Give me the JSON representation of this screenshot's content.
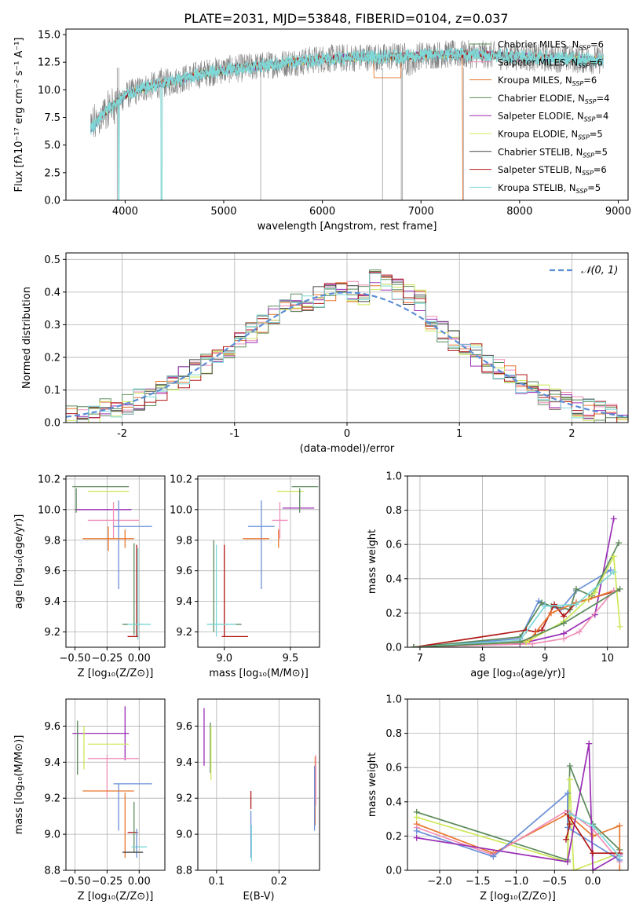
{
  "figure_title": "PLATE=2031, MJD=53848, FIBERID=0104, z=0.037",
  "colors": {
    "Chabrier MILES": "#5a8e5a",
    "Salpeter MILES": "#ef8fb8",
    "Kroupa MILES": "#e8772e",
    "Chabrier ELODIE": "#5b8a5b",
    "Salpeter ELODIE": "#9a2fb5",
    "Kroupa ELODIE": "#cde85a",
    "Chabrier STELIB": "#444444",
    "Salpeter STELIB": "#b01818",
    "Kroupa STELIB": "#7fd8d8",
    "gaussian": "#5b8ed6",
    "data": "#808080",
    "extra_blue": "#6a8fd8"
  },
  "chart_data": [
    {
      "id": "spectrum",
      "type": "line",
      "title": "PLATE=2031, MJD=53848, FIBERID=0104, z=0.037",
      "xlabel": "wavelength [Angstrom, rest frame]",
      "ylabel": "Flux [fλ10⁻¹⁷ erg cm⁻² s⁻¹ A⁻¹]",
      "xlim": [
        3400,
        9100
      ],
      "ylim": [
        0,
        15.5
      ],
      "xticks": [
        4000,
        5000,
        6000,
        7000,
        8000,
        9000
      ],
      "yticks": [
        0.0,
        2.5,
        5.0,
        7.5,
        10.0,
        12.5,
        15.0
      ],
      "grid": false,
      "legend_position": "upper-right",
      "legend": [
        {
          "label": "Chabrier MILES, N",
          "sub": "SSP",
          "tail": "=6"
        },
        {
          "label": "Salpeter MILES, N",
          "sub": "SSP",
          "tail": "=6"
        },
        {
          "label": "Kroupa MILES, N",
          "sub": "SSP",
          "tail": "=6"
        },
        {
          "label": "Chabrier ELODIE, N",
          "sub": "SSP",
          "tail": "=4"
        },
        {
          "label": "Salpeter ELODIE, N",
          "sub": "SSP",
          "tail": "=4"
        },
        {
          "label": "Kroupa ELODIE, N",
          "sub": "SSP",
          "tail": "=5"
        },
        {
          "label": "Chabrier STELIB, N",
          "sub": "SSP",
          "tail": "=5"
        },
        {
          "label": "Salpeter STELIB, N",
          "sub": "SSP",
          "tail": "=6"
        },
        {
          "label": "Kroupa STELIB, N",
          "sub": "SSP",
          "tail": "=5"
        }
      ],
      "continuum_x": [
        3650,
        3800,
        4000,
        4200,
        4500,
        4800,
        5000,
        5200,
        5500,
        5800,
        6000,
        6300,
        6500,
        6600,
        6700,
        6800,
        7000,
        7200,
        7400,
        7600,
        7800,
        8000,
        8200,
        8500,
        8800
      ],
      "continuum_y": [
        6.5,
        8.0,
        9.5,
        10.2,
        10.8,
        11.5,
        11.8,
        12.0,
        12.3,
        12.6,
        12.8,
        12.9,
        13.0,
        12.9,
        13.0,
        13.0,
        13.1,
        13.2,
        13.2,
        13.2,
        13.1,
        13.0,
        12.9,
        12.8,
        12.7
      ],
      "dropouts": [
        3920,
        3935,
        4365,
        5375,
        6610,
        6800,
        6810,
        7430
      ]
    },
    {
      "id": "residuals",
      "type": "line",
      "xlabel": "(data-model)/error",
      "ylabel": "Normed distribution",
      "xlim": [
        -2.5,
        2.5
      ],
      "ylim": [
        0,
        0.52
      ],
      "xticks": [
        -2,
        -1,
        0,
        1,
        2
      ],
      "yticks": [
        0.0,
        0.1,
        0.2,
        0.3,
        0.4,
        0.5
      ],
      "grid": true,
      "legend_position": "upper-right",
      "gaussian_label": "𝒩(0, 1)",
      "bin_width": 0.1
    },
    {
      "id": "age_vs_Z",
      "type": "scatter",
      "xlabel": "Z [log₁₀(Z/Z⊙)]",
      "ylabel": "age  [log₁₀(age/yr)]",
      "xlim": [
        -0.57,
        0.2
      ],
      "ylim": [
        9.1,
        10.22
      ],
      "xticks": [
        -0.5,
        -0.25,
        0.0
      ],
      "xticklabels": [
        "−0.50",
        "−0.25",
        "0.00"
      ],
      "yticks": [
        9.2,
        9.4,
        9.6,
        9.8,
        10.0,
        10.2
      ],
      "grid": true,
      "points": [
        {
          "c": "#5b8a5b",
          "x": -0.3,
          "xerr": 0.22,
          "y": 10.15,
          "yerr": 0.0
        },
        {
          "c": "#cde85a",
          "x": -0.24,
          "xerr": 0.16,
          "y": 10.12,
          "yerr": 0.0
        },
        {
          "c": "#9a2fb5",
          "x": -0.28,
          "xerr": 0.22,
          "y": 10.0,
          "yerr": 0.0
        },
        {
          "c": "#5b8a5b",
          "x": -0.49,
          "xerr": 0.0,
          "y": 10.06,
          "yerr": 0.08
        },
        {
          "c": "#ef8fb8",
          "x": -0.2,
          "xerr": 0.2,
          "y": 9.93,
          "yerr": 0.12
        },
        {
          "c": "#6a8fd8",
          "x": -0.05,
          "xerr": 0.15,
          "y": 9.89,
          "yerr": 0.0
        },
        {
          "c": "#6a8fd8",
          "x": -0.16,
          "xerr": 0.0,
          "y": 9.77,
          "yerr": 0.29
        },
        {
          "c": "#e8772e",
          "x": -0.24,
          "xerr": 0.2,
          "y": 9.81,
          "yerr": 0.08
        },
        {
          "c": "#e8772e",
          "x": -0.11,
          "xerr": 0.0,
          "y": 9.81,
          "yerr": 0.06
        },
        {
          "c": "#5b8a5b",
          "x": -0.04,
          "xerr": 0.0,
          "y": 9.48,
          "yerr": 0.3
        },
        {
          "c": "#b01818",
          "x": -0.02,
          "xerr": 0.0,
          "y": 9.47,
          "yerr": 0.3
        },
        {
          "c": "#7fd8d8",
          "x": -0.01,
          "xerr": 0.0,
          "y": 9.45,
          "yerr": 0.3
        },
        {
          "c": "#5b8a5b",
          "x": -0.05,
          "xerr": 0.08,
          "y": 9.25,
          "yerr": 0.0
        },
        {
          "c": "#7fd8d8",
          "x": 0.0,
          "xerr": 0.09,
          "y": 9.25,
          "yerr": 0.0
        },
        {
          "c": "#b01818",
          "x": -0.05,
          "xerr": 0.04,
          "y": 9.17,
          "yerr": 0.0
        }
      ]
    },
    {
      "id": "age_vs_mass",
      "type": "scatter",
      "xlabel": "mass [log₁₀(M/M⊙)]",
      "ylabel": "",
      "xlim": [
        8.8,
        9.72
      ],
      "ylim": [
        9.1,
        10.22
      ],
      "xticks": [
        9.0,
        9.5
      ],
      "xticklabels": [
        "9.0",
        "9.5"
      ],
      "yticks": [
        9.2,
        9.4,
        9.6,
        9.8,
        10.0,
        10.2
      ],
      "grid": true,
      "points": [
        {
          "c": "#5b8a5b",
          "x": 9.61,
          "xerr": 0.1,
          "y": 10.15,
          "yerr": 0.0
        },
        {
          "c": "#cde85a",
          "x": 9.5,
          "xerr": 0.1,
          "y": 10.12,
          "yerr": 0.0
        },
        {
          "c": "#9a2fb5",
          "x": 9.56,
          "xerr": 0.12,
          "y": 10.01,
          "yerr": 0.0
        },
        {
          "c": "#5b8a5b",
          "x": 9.57,
          "xerr": 0.0,
          "y": 10.06,
          "yerr": 0.08
        },
        {
          "c": "#ef8fb8",
          "x": 9.42,
          "xerr": 0.06,
          "y": 9.93,
          "yerr": 0.12
        },
        {
          "c": "#6a8fd8",
          "x": 9.28,
          "xerr": 0.1,
          "y": 9.89,
          "yerr": 0.0
        },
        {
          "c": "#6a8fd8",
          "x": 9.28,
          "xerr": 0.0,
          "y": 9.77,
          "yerr": 0.29
        },
        {
          "c": "#e8772e",
          "x": 9.24,
          "xerr": 0.1,
          "y": 9.81,
          "yerr": 0.0
        },
        {
          "c": "#e8772e",
          "x": 9.41,
          "xerr": 0.0,
          "y": 9.81,
          "yerr": 0.06
        },
        {
          "c": "#5b8a5b",
          "x": 8.92,
          "xerr": 0.0,
          "y": 9.5,
          "yerr": 0.3
        },
        {
          "c": "#7fd8d8",
          "x": 8.94,
          "xerr": 0.0,
          "y": 9.47,
          "yerr": 0.3
        },
        {
          "c": "#b01818",
          "x": 9.0,
          "xerr": 0.0,
          "y": 9.47,
          "yerr": 0.3
        },
        {
          "c": "#5b8a5b",
          "x": 9.0,
          "xerr": 0.13,
          "y": 9.25,
          "yerr": 0.0
        },
        {
          "c": "#7fd8d8",
          "x": 8.98,
          "xerr": 0.11,
          "y": 9.25,
          "yerr": 0.0
        },
        {
          "c": "#b01818",
          "x": 9.08,
          "xerr": 0.1,
          "y": 9.17,
          "yerr": 0.0
        }
      ]
    },
    {
      "id": "mass_weight_vs_age",
      "type": "line",
      "xlabel": "age  [log₁₀(age/yr)]",
      "ylabel": "mass weight",
      "xlim": [
        6.8,
        10.33
      ],
      "ylim": [
        0,
        1.0
      ],
      "xticks": [
        7,
        8,
        9,
        10
      ],
      "yticks": [
        0.0,
        0.2,
        0.4,
        0.6,
        0.8,
        1.0
      ],
      "grid": true,
      "series": [
        {
          "c": "#9a2fb5",
          "x": [
            6.9,
            8.6,
            9.3,
            9.8,
            10.1
          ],
          "y": [
            0.0,
            0.02,
            0.08,
            0.19,
            0.75
          ]
        },
        {
          "c": "#6a8fd8",
          "x": [
            6.9,
            8.6,
            8.9,
            9.0,
            9.25,
            9.5,
            10.05
          ],
          "y": [
            0.0,
            0.05,
            0.27,
            0.25,
            0.22,
            0.33,
            0.45
          ]
        },
        {
          "c": "#5b8a5b",
          "x": [
            6.9,
            8.6,
            8.95,
            9.1,
            9.4,
            9.5,
            9.75,
            10.18
          ],
          "y": [
            0.0,
            0.06,
            0.26,
            0.24,
            0.22,
            0.34,
            0.3,
            0.61
          ]
        },
        {
          "c": "#b01818",
          "x": [
            6.9,
            8.7,
            8.85,
            8.95,
            9.15,
            9.3,
            9.5,
            10.15
          ],
          "y": [
            0.0,
            0.1,
            0.09,
            0.1,
            0.25,
            0.18,
            0.26,
            0.33
          ]
        },
        {
          "c": "#e8772e",
          "x": [
            6.9,
            8.75,
            9.1,
            9.5,
            9.7,
            10.1
          ],
          "y": [
            0.0,
            0.04,
            0.2,
            0.26,
            0.28,
            0.33
          ]
        },
        {
          "c": "#ef8fb8",
          "x": [
            6.9,
            8.8,
            9.3,
            9.55,
            10.1
          ],
          "y": [
            0.0,
            0.02,
            0.05,
            0.09,
            0.33
          ]
        },
        {
          "c": "#cde85a",
          "x": [
            6.9,
            8.7,
            9.3,
            9.8,
            10.1,
            10.2
          ],
          "y": [
            0.0,
            0.03,
            0.15,
            0.32,
            0.53,
            0.12
          ]
        },
        {
          "c": "#7fd8d8",
          "x": [
            6.9,
            8.6,
            9.0,
            9.5,
            10.1
          ],
          "y": [
            0.0,
            0.04,
            0.24,
            0.25,
            0.44
          ]
        },
        {
          "c": "#5b8a5b",
          "x": [
            6.9,
            8.6,
            9.3,
            10.2
          ],
          "y": [
            0.0,
            0.03,
            0.14,
            0.34
          ]
        }
      ]
    },
    {
      "id": "mass_vs_Z",
      "type": "scatter",
      "xlabel": "Z [log₁₀(Z/Z⊙)]",
      "ylabel": "mass [log₁₀(M/M⊙)]",
      "xlim": [
        -0.57,
        0.2
      ],
      "ylim": [
        8.8,
        9.75
      ],
      "xticks": [
        -0.5,
        -0.25,
        0.0
      ],
      "xticklabels": [
        "−0.50",
        "−0.25",
        "0.00"
      ],
      "yticks": [
        8.8,
        9.0,
        9.2,
        9.4,
        9.6
      ],
      "grid": true,
      "points": [
        {
          "c": "#9a2fb5",
          "x": -0.3,
          "xerr": 0.22,
          "y": 9.56,
          "yerr": 0.0
        },
        {
          "c": "#9a2fb5",
          "x": -0.11,
          "xerr": 0.0,
          "y": 9.56,
          "yerr": 0.15
        },
        {
          "c": "#cde85a",
          "x": -0.24,
          "xerr": 0.16,
          "y": 9.5,
          "yerr": 0.0
        },
        {
          "c": "#5b8a5b",
          "x": -0.48,
          "xerr": 0.0,
          "y": 9.48,
          "yerr": 0.15
        },
        {
          "c": "#cde85a",
          "x": -0.43,
          "xerr": 0.0,
          "y": 9.48,
          "yerr": 0.12
        },
        {
          "c": "#ef8fb8",
          "x": -0.2,
          "xerr": 0.2,
          "y": 9.42,
          "yerr": 0.0
        },
        {
          "c": "#ef8fb8",
          "x": -0.25,
          "xerr": 0.0,
          "y": 9.32,
          "yerr": 0.12
        },
        {
          "c": "#6a8fd8",
          "x": -0.05,
          "xerr": 0.15,
          "y": 9.28,
          "yerr": 0.0
        },
        {
          "c": "#6a8fd8",
          "x": -0.16,
          "xerr": 0.0,
          "y": 9.15,
          "yerr": 0.13
        },
        {
          "c": "#e8772e",
          "x": -0.24,
          "xerr": 0.2,
          "y": 9.24,
          "yerr": 0.0
        },
        {
          "c": "#e8772e",
          "x": -0.11,
          "xerr": 0.0,
          "y": 9.05,
          "yerr": 0.18
        },
        {
          "c": "#b01818",
          "x": -0.05,
          "xerr": 0.04,
          "y": 9.01,
          "yerr": 0.0
        },
        {
          "c": "#5b8a5b",
          "x": -0.04,
          "xerr": 0.0,
          "y": 9.04,
          "yerr": 0.14
        },
        {
          "c": "#7fd8d8",
          "x": 0.0,
          "xerr": 0.06,
          "y": 8.93,
          "yerr": 0.0
        },
        {
          "c": "#6a8fd8",
          "x": -0.02,
          "xerr": 0.0,
          "y": 8.95,
          "yerr": 0.08
        },
        {
          "c": "#444444",
          "x": -0.05,
          "xerr": 0.08,
          "y": 8.9,
          "yerr": 0.0
        }
      ]
    },
    {
      "id": "mass_vs_ebv",
      "type": "scatter",
      "xlabel": "E(B-V)",
      "ylabel": "",
      "xlim": [
        0.07,
        0.265
      ],
      "ylim": [
        8.8,
        9.75
      ],
      "xticks": [
        0.1,
        0.2
      ],
      "xticklabels": [
        "0.1",
        "0.2"
      ],
      "yticks": [
        8.8,
        9.0,
        9.2,
        9.4,
        9.6
      ],
      "grid": true,
      "points": [
        {
          "c": "#9a2fb5",
          "x": 0.08,
          "xerr": 0.0,
          "y": 9.54,
          "yerr": 0.16
        },
        {
          "c": "#5b8a5b",
          "x": 0.09,
          "xerr": 0.0,
          "y": 9.48,
          "yerr": 0.14
        },
        {
          "c": "#cde85a",
          "x": 0.091,
          "xerr": 0.0,
          "y": 9.45,
          "yerr": 0.15
        },
        {
          "c": "#b01818",
          "x": 0.155,
          "xerr": 0.0,
          "y": 9.19,
          "yerr": 0.05
        },
        {
          "c": "#6a8fd8",
          "x": 0.155,
          "xerr": 0.0,
          "y": 9.0,
          "yerr": 0.13
        },
        {
          "c": "#7fd8d8",
          "x": 0.156,
          "xerr": 0.0,
          "y": 8.95,
          "yerr": 0.1
        },
        {
          "c": "#e8772e",
          "x": 0.258,
          "xerr": 0.0,
          "y": 9.24,
          "yerr": 0.19
        },
        {
          "c": "#6a8fd8",
          "x": 0.257,
          "xerr": 0.0,
          "y": 9.2,
          "yerr": 0.18
        },
        {
          "c": "#ef8fb8",
          "x": 0.259,
          "xerr": 0.0,
          "y": 9.3,
          "yerr": 0.14
        }
      ]
    },
    {
      "id": "mass_weight_vs_Z",
      "type": "line",
      "xlabel": "Z [log₁₀(Z/Z⊙)]",
      "ylabel": "mass weight",
      "xlim": [
        -2.42,
        0.46
      ],
      "ylim": [
        0,
        1.0
      ],
      "xticks": [
        -2.0,
        -1.5,
        -1.0,
        -0.5,
        0.0
      ],
      "xticklabels": [
        "−2.0",
        "−1.5",
        "−1.0",
        "−0.5",
        "0.0"
      ],
      "yticks": [
        0.0,
        0.2,
        0.4,
        0.6,
        0.8,
        1.0
      ],
      "grid": true,
      "series": [
        {
          "c": "#5b8a5b",
          "x": [
            -2.3,
            -0.33,
            -0.3,
            0.0,
            0.35
          ],
          "y": [
            0.34,
            0.06,
            0.61,
            0.27,
            0.12
          ]
        },
        {
          "c": "#cde85a",
          "x": [
            -2.3,
            -0.33,
            -0.3,
            -0.25,
            0.35
          ],
          "y": [
            0.31,
            0.05,
            0.53,
            0.0,
            0.1
          ]
        },
        {
          "c": "#e8772e",
          "x": [
            -2.3,
            -1.3,
            -0.33,
            0.0,
            0.35,
            0.35
          ],
          "y": [
            0.27,
            0.1,
            0.33,
            0.2,
            0.26,
            0.0
          ]
        },
        {
          "c": "#ef8fb8",
          "x": [
            -2.3,
            -1.3,
            -0.33,
            0.0,
            0.35
          ],
          "y": [
            0.25,
            0.09,
            0.35,
            0.24,
            0.05
          ]
        },
        {
          "c": "#6a8fd8",
          "x": [
            -2.3,
            -1.3,
            -0.33,
            -0.33,
            0.35
          ],
          "y": [
            0.23,
            0.08,
            0.45,
            0.25,
            0.06
          ]
        },
        {
          "c": "#9a2fb5",
          "x": [
            -2.3,
            -0.33,
            -0.05,
            0.0,
            0.35
          ],
          "y": [
            0.19,
            0.05,
            0.74,
            0.0,
            0.09
          ]
        },
        {
          "c": "#b01818",
          "x": [
            -0.35,
            -0.3,
            -0.33,
            0.0,
            0.35
          ],
          "y": [
            0.18,
            0.27,
            0.33,
            0.1,
            0.1
          ]
        },
        {
          "c": "#7fd8d8",
          "x": [
            -0.3,
            0.0,
            0.35
          ],
          "y": [
            0.33,
            0.26,
            0.08
          ]
        }
      ]
    }
  ]
}
